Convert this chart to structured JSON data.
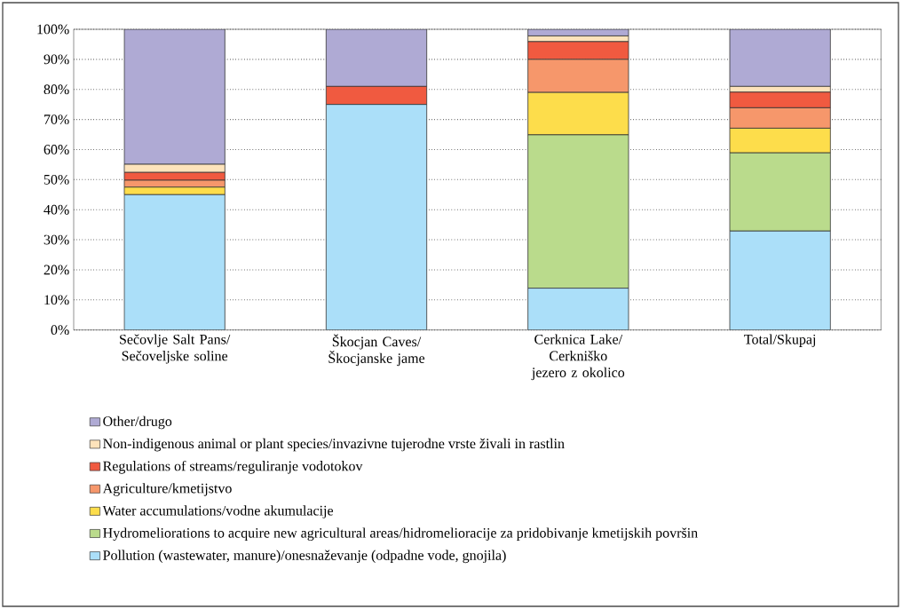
{
  "chart_data": {
    "type": "bar",
    "stacked": true,
    "categories": [
      "Sečovlje Salt Pans/Sečoveljske soline",
      "Škocjan Caves/Škocjanske jame",
      "Cerknica Lake/Cerkniško jezero z okolico",
      "Total/Skupaj"
    ],
    "series": [
      {
        "name": "Pollution (wastewater, manure)/onesnaževanje (odpadne vode, gnojila)",
        "color": "#abdff9",
        "values": [
          45.0,
          75.0,
          13.9,
          32.9
        ]
      },
      {
        "name": "Hydromeliorations to acquire new agricultural areas/hidromelioracije za pridobivanje kmetijskih površin",
        "color": "#badb8c",
        "values": [
          0,
          0,
          51.0,
          26.0
        ]
      },
      {
        "name": "Water accumulations/vodne akumulacije",
        "color": "#fddd4b",
        "values": [
          2.5,
          0,
          14.1,
          8.2
        ]
      },
      {
        "name": "Agriculture/kmetijstvo",
        "color": "#f6976b",
        "values": [
          2.3,
          0,
          11.0,
          6.8
        ]
      },
      {
        "name": "Regulations of streams/reguliranje vodotokov",
        "color": "#f05a40",
        "values": [
          2.6,
          6.0,
          5.9,
          5.2
        ]
      },
      {
        "name": "Non-indigenous animal or plant species/invazivne tujerodne vrste živali in rastlin",
        "color": "#fde3bb",
        "values": [
          2.7,
          0,
          1.9,
          1.9
        ]
      },
      {
        "name": "Other/drugo",
        "color": "#afaad4",
        "values": [
          44.9,
          19.0,
          2.2,
          19.0
        ]
      }
    ],
    "ylim": [
      0,
      100
    ],
    "yticks": [
      {
        "value": 0,
        "label": "0%"
      },
      {
        "value": 10,
        "label": "10%"
      },
      {
        "value": 20,
        "label": "20%"
      },
      {
        "value": 30,
        "label": "30%"
      },
      {
        "value": 40,
        "label": "40%"
      },
      {
        "value": 50,
        "label": "50%"
      },
      {
        "value": 60,
        "label": "60%"
      },
      {
        "value": 70,
        "label": "70%"
      },
      {
        "value": 80,
        "label": "80%"
      },
      {
        "value": 90,
        "label": "90%"
      },
      {
        "value": 100,
        "label": "100%"
      }
    ],
    "grid": "y",
    "legend": "bottom"
  }
}
